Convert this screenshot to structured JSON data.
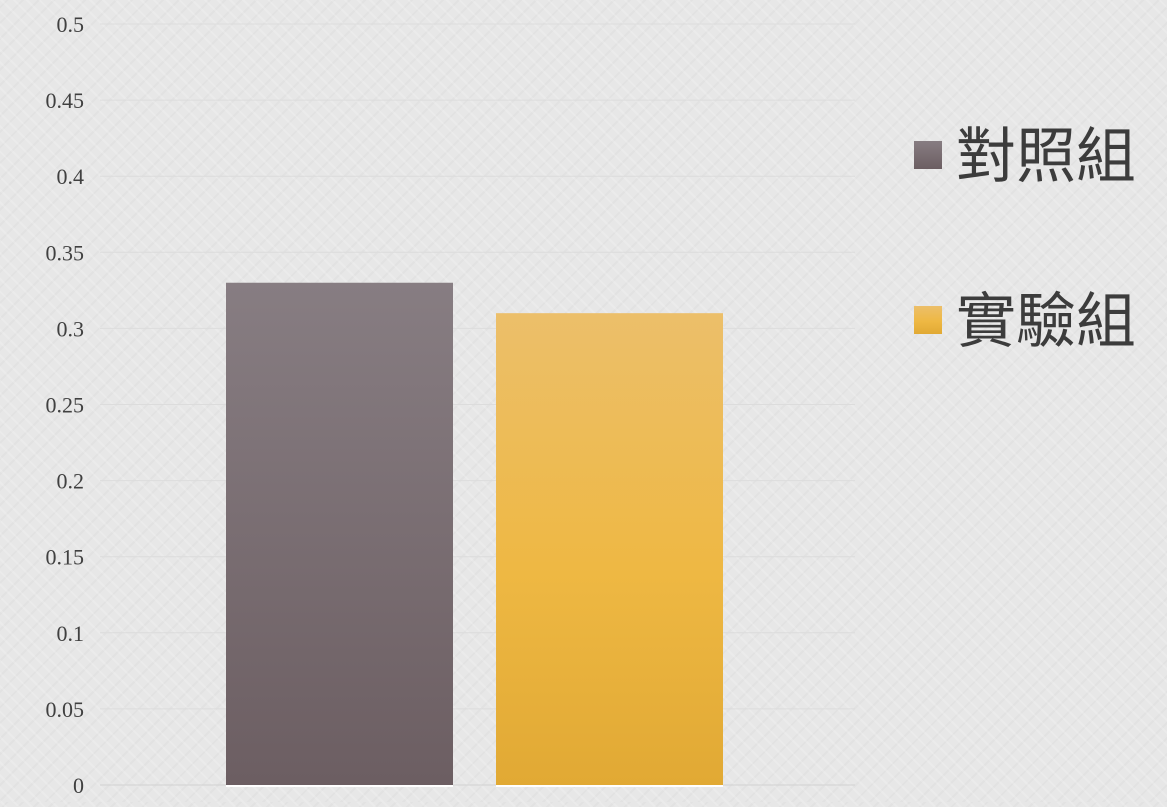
{
  "chart_data": {
    "type": "bar",
    "categories": [
      ""
    ],
    "series": [
      {
        "name": "對照組",
        "values": [
          0.33
        ],
        "color": "#7a6d72"
      },
      {
        "name": "實驗組",
        "values": [
          0.31
        ],
        "color": "#ecb43a"
      }
    ],
    "ylim": [
      0,
      0.5
    ],
    "yticks": [
      "0",
      "0.05",
      "0.1",
      "0.15",
      "0.2",
      "0.25",
      "0.3",
      "0.35",
      "0.4",
      "0.45",
      "0.5"
    ],
    "grid": true,
    "legend_position": "right",
    "title": "",
    "xlabel": "",
    "ylabel": ""
  }
}
